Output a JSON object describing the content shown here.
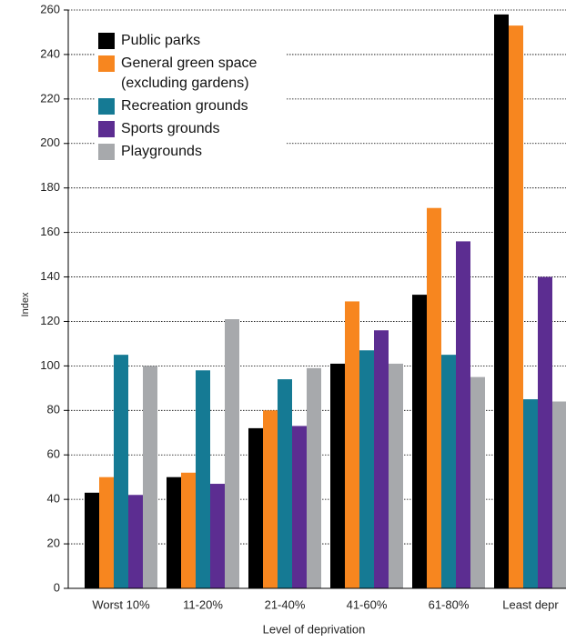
{
  "chart_data": {
    "type": "bar",
    "categories": [
      "Worst 10%",
      "11-20%",
      "21-40%",
      "41-60%",
      "61-80%",
      "Least depr"
    ],
    "series": [
      {
        "name": "Public parks",
        "color": "#000000",
        "values": [
          43,
          50,
          72,
          101,
          132,
          258
        ]
      },
      {
        "name": "General green space (excluding gardens)",
        "color": "#f7861f",
        "values": [
          50,
          52,
          80,
          129,
          171,
          253
        ]
      },
      {
        "name": "Recreation grounds",
        "color": "#157a94",
        "values": [
          105,
          98,
          94,
          107,
          105,
          85
        ]
      },
      {
        "name": "Sports grounds",
        "color": "#5c2d91",
        "values": [
          42,
          47,
          73,
          116,
          156,
          140
        ]
      },
      {
        "name": "Playgrounds",
        "color": "#a7a9ac",
        "values": [
          100,
          121,
          99,
          101,
          95,
          84
        ]
      }
    ],
    "ylim": [
      0,
      260
    ],
    "yticks": [
      0,
      20,
      40,
      60,
      80,
      100,
      120,
      140,
      160,
      180,
      200,
      220,
      240,
      260
    ],
    "grid": true,
    "ylabel": "Index",
    "xlabel": "Level of deprivation",
    "legend": "upper left"
  }
}
